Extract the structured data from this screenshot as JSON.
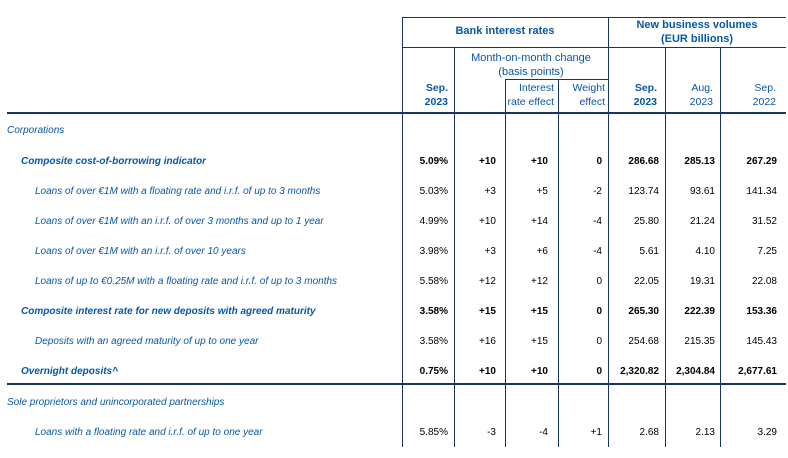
{
  "colors": {
    "text_blue": "#0857A6",
    "line_navy": "#17365D",
    "value_black": "#000000"
  },
  "header": {
    "group_rates": "Bank interest rates",
    "group_volumes_line1": "New business volumes",
    "group_volumes_line2": "(EUR billions)",
    "mom_line1": "Month-on-month change",
    "mom_line2": "(basis points)",
    "col_rate_l1": "Sep.",
    "col_rate_l2": "2023",
    "col_interest_l1": "Interest",
    "col_interest_l2": "rate effect",
    "col_weight_l1": "Weight",
    "col_weight_l2": "effect",
    "col_vol1_l1": "Sep.",
    "col_vol1_l2": "2023",
    "col_vol2_l1": "Aug.",
    "col_vol2_l2": "2023",
    "col_vol3_l1": "Sep.",
    "col_vol3_l2": "2022"
  },
  "chart_data": {
    "type": "table",
    "title": "Bank interest rates and new business volumes",
    "columns": [
      "Sep. 2023 rate",
      "Month-on-month change (bp)",
      "Interest rate effect (bp)",
      "Weight effect (bp)",
      "New business volumes Sep. 2023 (EUR bn)",
      "Aug. 2023 (EUR bn)",
      "Sep. 2022 (EUR bn)"
    ]
  },
  "rows": [
    {
      "section": "Corporations",
      "style": "section-upright",
      "indent": 0
    },
    {
      "label": "Composite cost-of-borrowing indicator",
      "indent": 1,
      "bold": true,
      "values": [
        "5.09%",
        "+10",
        "+10",
        "0",
        "286.68",
        "285.13",
        "267.29"
      ]
    },
    {
      "label": "Loans of over €1M with a floating rate and i.r.f. of up to 3 months",
      "indent": 2,
      "bold": false,
      "values": [
        "5.03%",
        "+3",
        "+5",
        "-2",
        "123.74",
        "93.61",
        "141.34"
      ]
    },
    {
      "label": "Loans of over €1M with an i.r.f. of over 3 months and up to 1 year",
      "indent": 2,
      "bold": false,
      "values": [
        "4.99%",
        "+10",
        "+14",
        "-4",
        "25.80",
        "21.24",
        "31.52"
      ]
    },
    {
      "label": "Loans of over €1M with an i.r.f. of over 10 years",
      "indent": 2,
      "bold": false,
      "values": [
        "3.98%",
        "+3",
        "+6",
        "-4",
        "5.61",
        "4.10",
        "7.25"
      ]
    },
    {
      "label": "Loans of up to €0.25M with a floating rate and i.r.f. of up to 3 months",
      "indent": 2,
      "bold": false,
      "values": [
        "5.58%",
        "+12",
        "+12",
        "0",
        "22.05",
        "19.31",
        "22.08"
      ]
    },
    {
      "label": "Composite interest rate for new deposits with agreed maturity",
      "indent": 1,
      "bold": true,
      "values": [
        "3.58%",
        "+15",
        "+15",
        "0",
        "265.30",
        "222.39",
        "153.36"
      ]
    },
    {
      "label": "Deposits with an agreed maturity of up to one year",
      "indent": 2,
      "bold": false,
      "values": [
        "3.58%",
        "+16",
        "+15",
        "0",
        "254.68",
        "215.35",
        "145.43"
      ]
    },
    {
      "label": "Overnight deposits^",
      "indent": 1,
      "bold": true,
      "values": [
        "0.75%",
        "+10",
        "+10",
        "0",
        "2,320.82",
        "2,304.84",
        "2,677.61"
      ]
    },
    {
      "section": "Sole proprietors and unincorporated partnerships",
      "style": "section-italic",
      "indent": 0
    },
    {
      "label": "Loans with a floating rate and i.r.f. of up to one year",
      "indent": 2,
      "bold": false,
      "values": [
        "5.85%",
        "-3",
        "-4",
        "+1",
        "2.68",
        "2.13",
        "3.29"
      ]
    }
  ]
}
